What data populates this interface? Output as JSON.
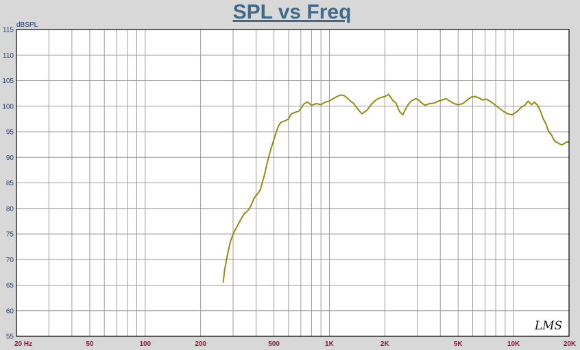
{
  "chart_data": {
    "type": "line",
    "title": "SPL vs Freq",
    "ylabel": "dBSPL",
    "xlabel": "",
    "x_scale": "log",
    "xlim": [
      20,
      20000
    ],
    "ylim": [
      55,
      115
    ],
    "grid": true,
    "x_ticks": [
      {
        "value": 20,
        "label": "20  Hz"
      },
      {
        "value": 50,
        "label": "50"
      },
      {
        "value": 100,
        "label": "100"
      },
      {
        "value": 200,
        "label": "200"
      },
      {
        "value": 500,
        "label": "500"
      },
      {
        "value": 1000,
        "label": "1K"
      },
      {
        "value": 2000,
        "label": "2K"
      },
      {
        "value": 5000,
        "label": "5K"
      },
      {
        "value": 10000,
        "label": "10K"
      },
      {
        "value": 20000,
        "label": "20K"
      }
    ],
    "y_ticks": [
      55,
      60,
      65,
      70,
      75,
      80,
      85,
      90,
      95,
      100,
      105,
      110,
      115
    ],
    "logo": "LMS",
    "colors": {
      "series": "#8f8d12",
      "background": "#d8d8d8",
      "plot_bg": "#ffffff",
      "grid": "#9a9a9a",
      "title": "#3f6a8a",
      "ytick": "#1d3f7a",
      "xtick": "#8b1a3a"
    },
    "series": [
      {
        "x": [
          265,
          270,
          280,
          290,
          300,
          315,
          330,
          345,
          360,
          375,
          390,
          400,
          420,
          440,
          460,
          480,
          500,
          515,
          530,
          545,
          560,
          580,
          600,
          620,
          650,
          680,
          700,
          730,
          760,
          800,
          850,
          900,
          950,
          1000,
          1050,
          1100,
          1150,
          1200,
          1250,
          1300,
          1350,
          1400,
          1500,
          1600,
          1700,
          1800,
          1900,
          2000,
          2100,
          2200,
          2300,
          2400,
          2500,
          2600,
          2700,
          2800,
          2950,
          3050,
          3150,
          3300,
          3500,
          3700,
          3900,
          4100,
          4300,
          4500,
          4750,
          5000,
          5300,
          5600,
          5900,
          6200,
          6500,
          6800,
          7100,
          7500,
          7900,
          8300,
          8800,
          9300,
          9800,
          10500,
          11000,
          11500,
          12000,
          12500,
          13000,
          13500,
          14000,
          14500,
          15000,
          15500,
          16000,
          16500,
          17000,
          17500,
          18000,
          18500,
          19000,
          19500,
          20000
        ],
        "y": [
          65.5,
          68.0,
          71.0,
          73.5,
          75.0,
          76.5,
          77.8,
          79.0,
          79.5,
          80.5,
          82.0,
          82.5,
          83.5,
          86.0,
          89.0,
          91.5,
          93.5,
          95.0,
          96.2,
          96.8,
          97.0,
          97.2,
          97.5,
          98.5,
          98.8,
          99.0,
          99.5,
          100.5,
          100.8,
          100.2,
          100.5,
          100.3,
          100.8,
          101.0,
          101.5,
          101.9,
          102.2,
          102.1,
          101.6,
          101.0,
          100.6,
          99.8,
          98.5,
          99.2,
          100.5,
          101.3,
          101.7,
          101.9,
          102.3,
          101.2,
          100.6,
          99.0,
          98.3,
          99.5,
          100.5,
          101.1,
          101.5,
          101.2,
          100.7,
          100.2,
          100.5,
          100.6,
          101.0,
          101.2,
          101.5,
          101.0,
          100.5,
          100.3,
          100.5,
          101.2,
          101.8,
          101.9,
          101.6,
          101.2,
          101.4,
          100.9,
          100.3,
          99.7,
          99.0,
          98.5,
          98.3,
          99.0,
          99.8,
          100.2,
          101.0,
          100.3,
          100.8,
          100.2,
          99.0,
          97.5,
          96.5,
          95.0,
          94.5,
          93.5,
          93.0,
          92.8,
          92.5,
          92.5,
          92.8,
          93.0,
          93.0
        ]
      }
    ]
  }
}
